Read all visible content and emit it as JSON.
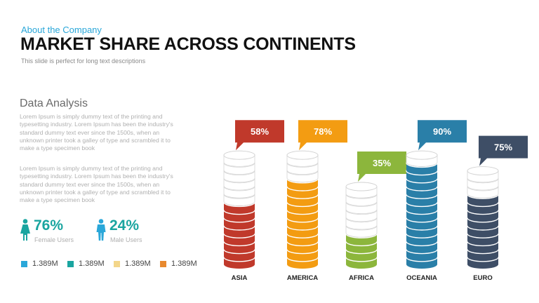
{
  "header": {
    "eyebrow": "About the Company",
    "title": "MARKET SHARE ACROSS CONTINENTS",
    "subtitle": "This slide is perfect for long text descriptions"
  },
  "analysis": {
    "heading": "Data Analysis",
    "paragraphs": [
      "Lorem Ipsum is simply dummy text of the printing and typesetting industry. Lorem Ipsum has been the industry's standard dummy text ever since the 1500s, when an unknown printer took a galley of type and scrambled it to make a type specimen book",
      "Lorem Ipsum is simply dummy text of the printing and typesetting industry. Lorem Ipsum has been the industry's standard dummy text ever since the 1500s, when an unknown printer took a galley of type and scrambled it to make a type specimen book"
    ]
  },
  "stats": {
    "female": {
      "value": "76%",
      "label": "Female Users",
      "icon": "female-user-icon",
      "color": "#1aa5a0"
    },
    "male": {
      "value": "24%",
      "label": "Male Users",
      "icon": "male-user-icon",
      "color": "#1aa5a0"
    }
  },
  "legend": [
    {
      "label": "1.389M",
      "color": "#2aa7d9"
    },
    {
      "label": "1.389M",
      "color": "#1aa5a0"
    },
    {
      "label": "1.389M",
      "color": "#f3d68a"
    },
    {
      "label": "1.389M",
      "color": "#e8892e"
    }
  ],
  "chart_data": {
    "type": "bar",
    "style": "stacked-disc cylinders with callout labels",
    "categories": [
      "ASIA",
      "AMERICA",
      "AFRICA",
      "OCEANIA",
      "EURO"
    ],
    "values": [
      58,
      78,
      35,
      90,
      75
    ],
    "value_labels": [
      "58%",
      "78%",
      "35%",
      "90%",
      "75%"
    ],
    "total_discs": [
      14,
      14,
      10,
      14,
      12
    ],
    "filled_discs": [
      8,
      11,
      4,
      13,
      9
    ],
    "colors": [
      "#c0392b",
      "#f39c12",
      "#8cb63c",
      "#2a7fa8",
      "#3e4e66"
    ],
    "empty_color": "#ffffff",
    "grid": false,
    "legend": "none"
  }
}
